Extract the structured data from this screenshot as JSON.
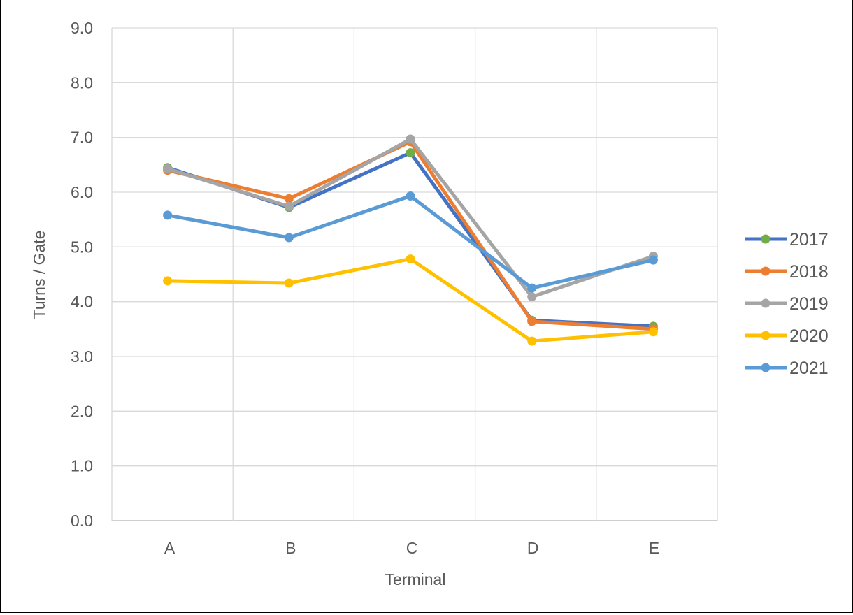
{
  "chart_data": {
    "type": "line",
    "title": "",
    "xlabel": "Terminal",
    "ylabel": "Turns / Gate",
    "categories": [
      "A",
      "B",
      "C",
      "D",
      "E"
    ],
    "ylim": [
      0,
      9
    ],
    "y_ticks": [
      "0.0",
      "1.0",
      "2.0",
      "3.0",
      "4.0",
      "5.0",
      "6.0",
      "7.0",
      "8.0",
      "9.0"
    ],
    "grid": true,
    "legend_position": "right",
    "series": [
      {
        "name": "2017",
        "color": "#4472C4",
        "marker_color": "#70AD47",
        "values": [
          6.45,
          5.72,
          6.72,
          3.66,
          3.55
        ]
      },
      {
        "name": "2018",
        "color": "#ED7D31",
        "marker_color": "#ED7D31",
        "values": [
          6.4,
          5.88,
          6.92,
          3.64,
          3.5
        ]
      },
      {
        "name": "2019",
        "color": "#A5A5A5",
        "marker_color": "#A5A5A5",
        "values": [
          6.43,
          5.74,
          6.97,
          4.09,
          4.83
        ]
      },
      {
        "name": "2020",
        "color": "#FFC000",
        "marker_color": "#FFC000",
        "values": [
          4.38,
          4.34,
          4.78,
          3.28,
          3.45
        ]
      },
      {
        "name": "2021",
        "color": "#5B9BD5",
        "marker_color": "#5B9BD5",
        "values": [
          5.58,
          5.17,
          5.93,
          4.25,
          4.76
        ]
      }
    ]
  }
}
